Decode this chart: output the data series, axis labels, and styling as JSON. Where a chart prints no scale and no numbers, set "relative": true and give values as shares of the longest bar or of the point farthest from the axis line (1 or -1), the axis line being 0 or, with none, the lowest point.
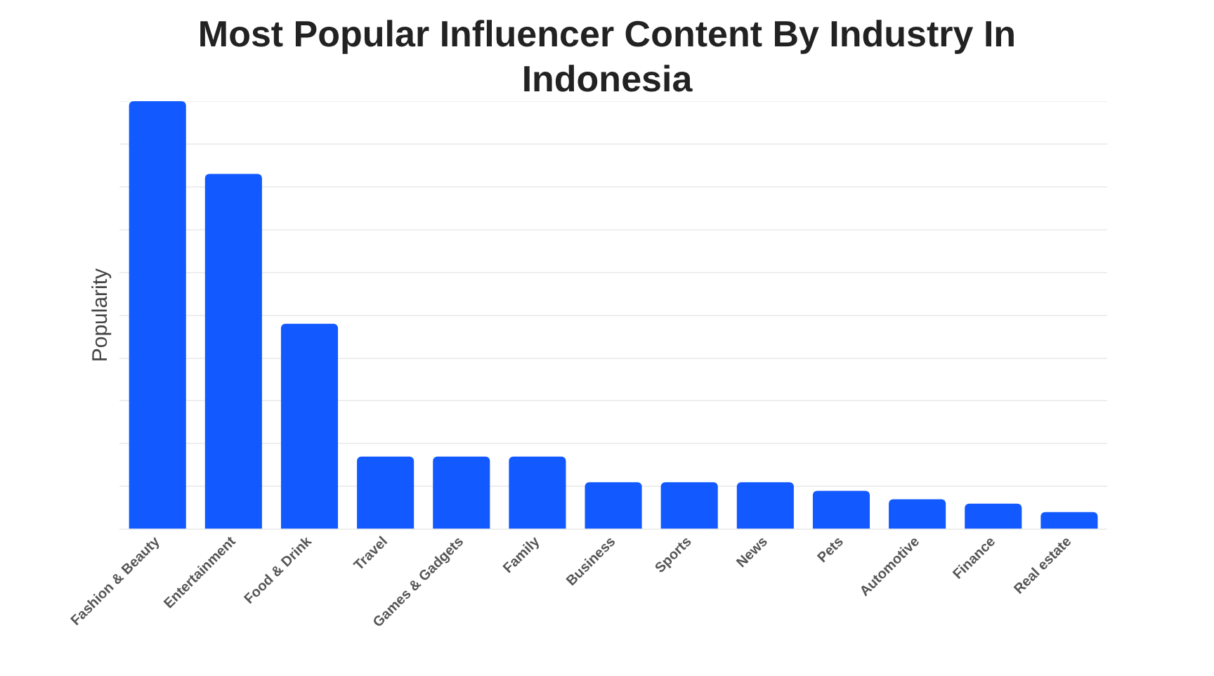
{
  "chart_data": {
    "type": "bar",
    "title": "Most Popular Influencer Content By Industry In Indonesia",
    "ylabel": "Popularity",
    "categories": [
      "Fashion & Beauty",
      "Entertainment",
      "Food & Drink",
      "Travel",
      "Games & Gadgets",
      "Family",
      "Business",
      "Sports",
      "News",
      "Pets",
      "Automotive",
      "Finance",
      "Real estate"
    ],
    "values": [
      1,
      0.83,
      0.48,
      0.17,
      0.17,
      0.17,
      0.11,
      0.11,
      0.11,
      0.09,
      0.07,
      0.06,
      0.04
    ],
    "color": "#1259ff",
    "relative": true,
    "grid": "y"
  }
}
